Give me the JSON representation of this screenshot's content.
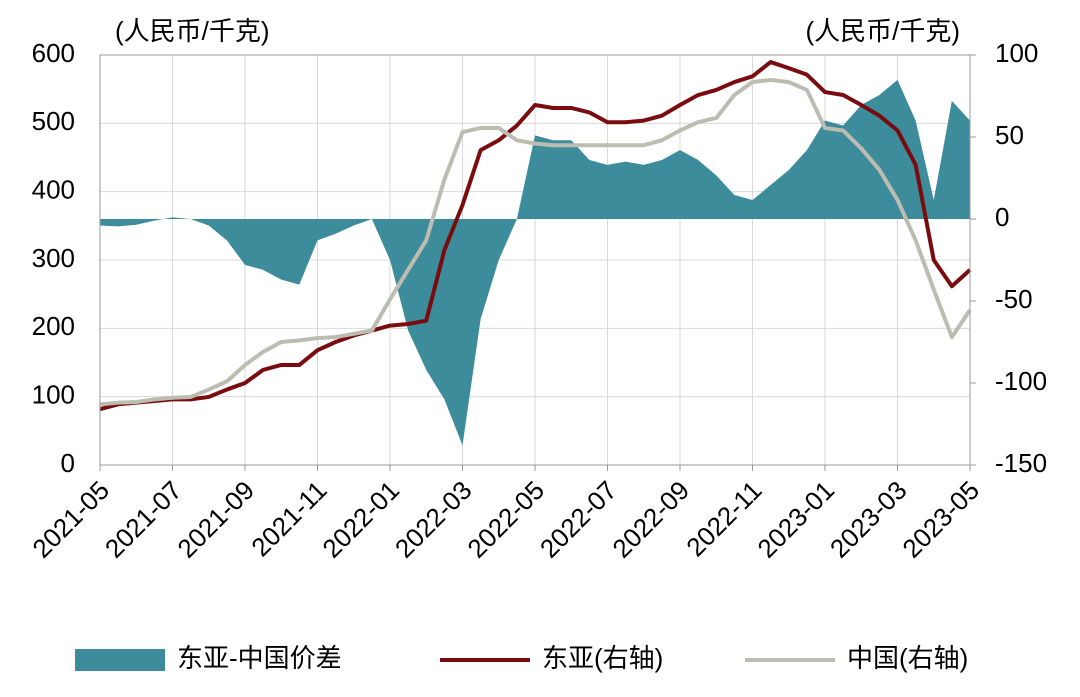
{
  "chart_data": {
    "type": "line",
    "ylabel": "(人民币/千克)",
    "y2label": "(人民币/千克)",
    "categories": [
      "2021-05",
      null,
      null,
      null,
      "2021-07",
      null,
      null,
      null,
      "2021-09",
      null,
      null,
      null,
      "2021-11",
      null,
      null,
      null,
      "2022-01",
      null,
      null,
      null,
      "2022-03",
      null,
      null,
      null,
      "2022-05",
      null,
      null,
      null,
      "2022-07",
      null,
      null,
      null,
      "2022-09",
      null,
      null,
      null,
      "2022-11",
      null,
      null,
      null,
      "2023-01",
      null,
      null,
      null,
      "2023-03",
      null,
      null,
      null,
      "2023-05"
    ],
    "series": [
      {
        "name": "东亚-中国价差",
        "type": "area",
        "axis": "y2",
        "color": "#3d8c9c",
        "values": [
          -4,
          -4.5,
          -3.5,
          -1,
          1,
          0,
          -4,
          -13,
          -28,
          -31,
          -37,
          -40,
          -13,
          -9,
          -4,
          0,
          -25,
          -68,
          -92,
          -110,
          -138,
          -61,
          -25,
          0,
          51,
          48,
          48,
          36,
          33,
          35,
          33,
          36,
          42,
          36,
          26.6,
          14.6,
          11.6,
          20.7,
          29.9,
          42,
          60,
          57,
          69.5,
          75.6,
          84.8,
          60,
          11.6,
          72,
          60
        ]
      },
      {
        "name": "东亚(右轴)",
        "type": "line",
        "axis": "y2",
        "color": "#7a0c10",
        "values": [
          -116,
          -113,
          -112,
          -111,
          -110,
          -110,
          -108.5,
          -104,
          -100,
          -92,
          -89,
          -89,
          -80,
          -75,
          -71,
          -68,
          -65,
          -64,
          -62,
          -19,
          8.5,
          42,
          48,
          57,
          69.5,
          67.7,
          67.7,
          65,
          59,
          59,
          60,
          63,
          69.5,
          75.6,
          78.7,
          83.5,
          87,
          95.7,
          92,
          88,
          77.4,
          75.6,
          69.5,
          63,
          54,
          33,
          -25,
          -41,
          -31
        ]
      },
      {
        "name": "中国(右轴)",
        "type": "line",
        "axis": "y2",
        "color": "#bdbcb0",
        "values": [
          -113,
          -112,
          -111.6,
          -110,
          -109,
          -108.5,
          -104,
          -99,
          -89,
          -81,
          -75,
          -74,
          -72.6,
          -72,
          -70,
          -68,
          -49,
          -31,
          -13,
          24,
          53,
          55.5,
          55.5,
          48,
          46,
          45,
          45,
          45,
          45,
          45,
          45,
          48,
          54,
          59,
          61.6,
          75.6,
          83.5,
          84.8,
          83.5,
          78.7,
          55.5,
          54,
          43,
          30,
          11.6,
          -13,
          -43,
          -72,
          -55.5
        ]
      }
    ],
    "ylim": [
      0,
      600
    ],
    "yticks": [
      0,
      100,
      200,
      300,
      400,
      500,
      600
    ],
    "y2lim": [
      -150,
      100
    ],
    "y2ticks": [
      -150,
      -100,
      -50,
      0,
      50,
      100
    ],
    "grid": true,
    "legend": "bottom"
  }
}
